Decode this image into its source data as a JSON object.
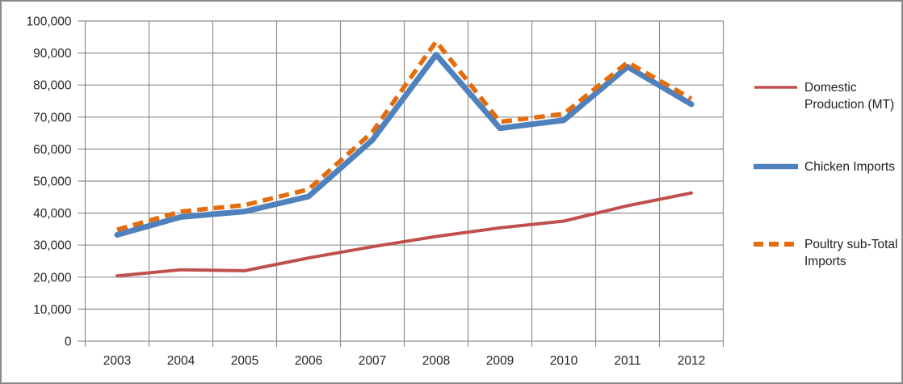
{
  "chart_data": {
    "type": "line",
    "title": "",
    "categories": [
      "2003",
      "2004",
      "2005",
      "2006",
      "2007",
      "2008",
      "2009",
      "2010",
      "2011",
      "2012"
    ],
    "series": [
      {
        "name": "Domestic Production (MT)",
        "data_name": "domestic-production-line",
        "color": "#C0504D",
        "style": "solid",
        "width": 4,
        "values": [
          20400,
          22300,
          22000,
          26000,
          29500,
          32700,
          35400,
          37500,
          42300,
          46300
        ]
      },
      {
        "name": "Chicken Imports",
        "data_name": "chicken-imports-line",
        "color": "#4F81BD",
        "style": "solid",
        "width": 7,
        "values": [
          33200,
          38800,
          40500,
          45200,
          62800,
          89500,
          66500,
          69000,
          85700,
          74000
        ]
      },
      {
        "name": "Poultry sub-Total Imports",
        "data_name": "poultry-subtotal-imports-line",
        "color": "#E46C0A",
        "style": "dashed",
        "width": 5.5,
        "values": [
          34800,
          40500,
          42500,
          47400,
          65300,
          93600,
          68500,
          71000,
          87100,
          75700
        ]
      }
    ],
    "xlabel": "",
    "ylabel": "",
    "ylim": [
      0,
      100000
    ],
    "ytick_step": 10000,
    "ytick_labels": [
      "0",
      "10,000",
      "20,000",
      "30,000",
      "40,000",
      "50,000",
      "60,000",
      "70,000",
      "80,000",
      "90,000",
      "100,000"
    ],
    "grid": true,
    "gridline_color": "#8F8F8F",
    "legend_position": "right"
  }
}
